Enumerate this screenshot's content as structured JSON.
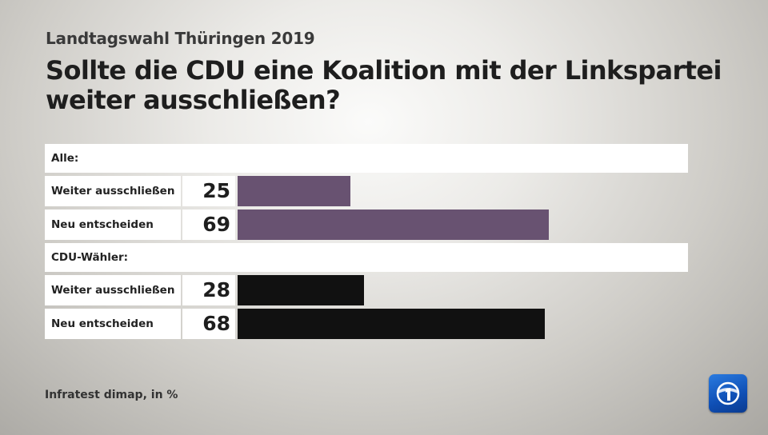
{
  "header": {
    "supertitle": "Landtagswahl Thüringen 2019",
    "title": "Sollte die CDU eine Koalition mit der Linkspartei weiter ausschließen?"
  },
  "footer": {
    "source": "Infratest dimap, in %"
  },
  "colors": {
    "group1": "#685271",
    "group2": "#111111"
  },
  "chart_data": {
    "type": "bar",
    "orientation": "horizontal",
    "unit": "%",
    "xlim": [
      0,
      100
    ],
    "groups": [
      {
        "name": "Alle:",
        "rows": [
          {
            "label": "Weiter ausschließen",
            "value": 25
          },
          {
            "label": "Neu entscheiden",
            "value": 69
          }
        ]
      },
      {
        "name": "CDU-Wähler:",
        "rows": [
          {
            "label": "Weiter ausschließen",
            "value": 28
          },
          {
            "label": "Neu entscheiden",
            "value": 68
          }
        ]
      }
    ]
  }
}
